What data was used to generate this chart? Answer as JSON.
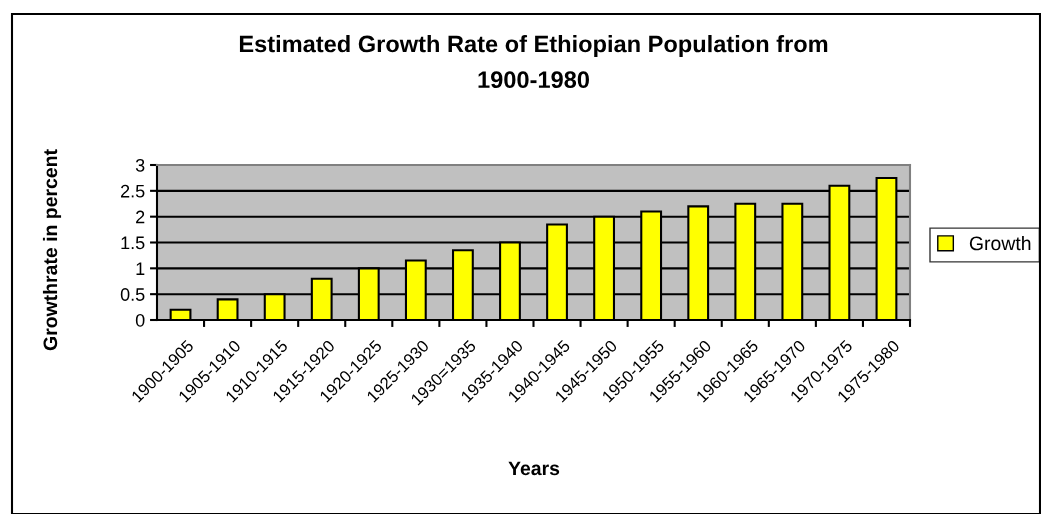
{
  "chart_data": {
    "type": "bar",
    "title": "Estimated Growth Rate of Ethiopian Population from\n1900-1980",
    "xlabel": "Years",
    "ylabel": "Growthrate in percent",
    "categories": [
      "1900-1905",
      "1905-1910",
      "1910-1915",
      "1915-1920",
      "1920-1925",
      "1925-1930",
      "1930=1935",
      "1935-1940",
      "1940-1945",
      "1945-1950",
      "1950-1955",
      "1955-1960",
      "1960-1965",
      "1965-1970",
      "1970-1975",
      "1975-1980"
    ],
    "series": [
      {
        "name": "Growth",
        "color": "#ffff00",
        "values": [
          0.2,
          0.4,
          0.5,
          0.8,
          1.0,
          1.15,
          1.35,
          1.5,
          1.85,
          2.0,
          2.1,
          2.2,
          2.25,
          2.25,
          2.6,
          2.75
        ]
      }
    ],
    "ylim": [
      0,
      3
    ],
    "yticks": [
      0,
      0.5,
      1,
      1.5,
      2,
      2.5,
      3
    ],
    "grid": "y",
    "legend": "right"
  }
}
